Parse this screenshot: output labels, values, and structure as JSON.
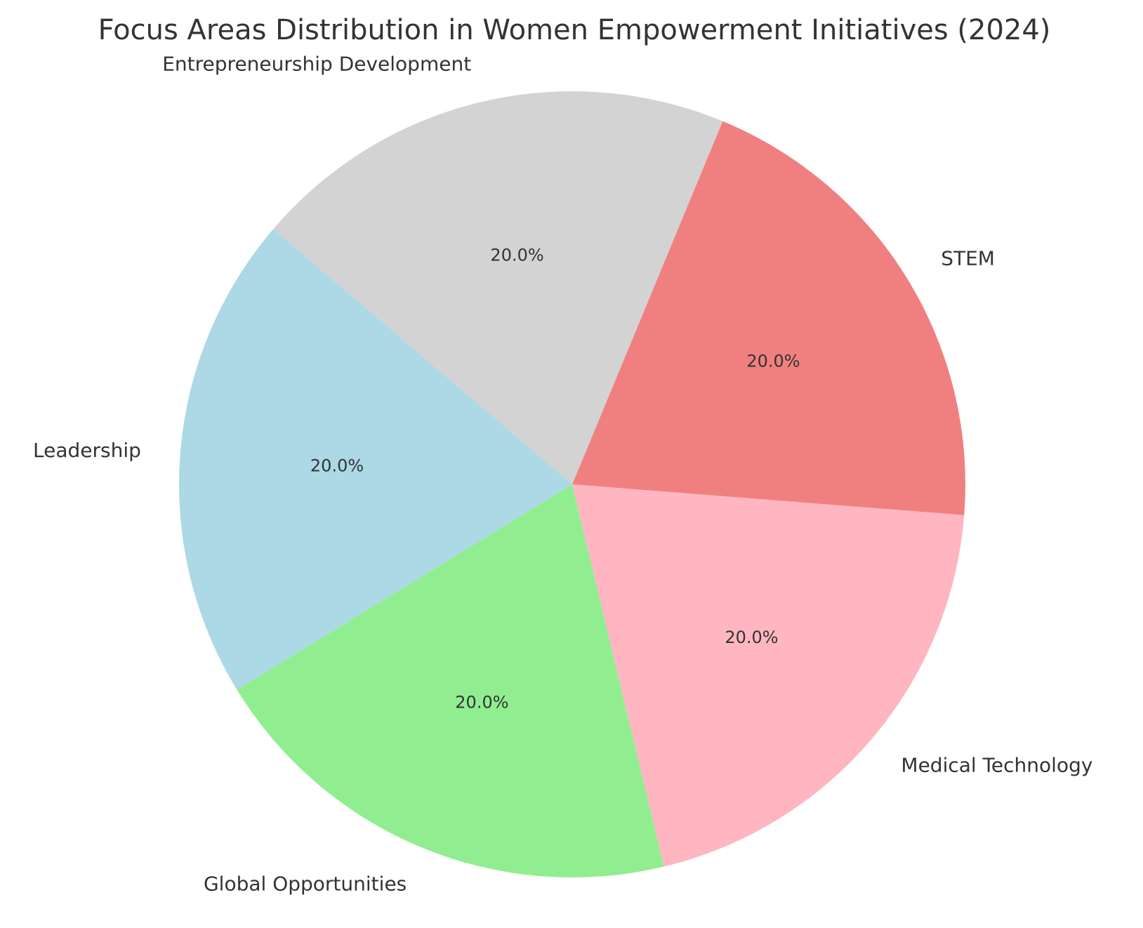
{
  "chart_data": {
    "type": "pie",
    "title": "Focus Areas Distribution in Women Empowerment Initiatives (2024)",
    "categories": [
      "STEM",
      "Entrepreneurship Development",
      "Leadership",
      "Global Opportunities",
      "Medical Technology"
    ],
    "values": [
      20.0,
      20.0,
      20.0,
      20.0,
      20.0
    ],
    "value_labels": [
      "20.0%",
      "20.0%",
      "20.0%",
      "20.0%",
      "20.0%"
    ],
    "colors": [
      "#f08080",
      "#d3d3d3",
      "#add8e6",
      "#90ee90",
      "#ffb6c1"
    ],
    "start_angle_deg": -4.5,
    "direction": "counterclockwise",
    "legend": "none"
  }
}
